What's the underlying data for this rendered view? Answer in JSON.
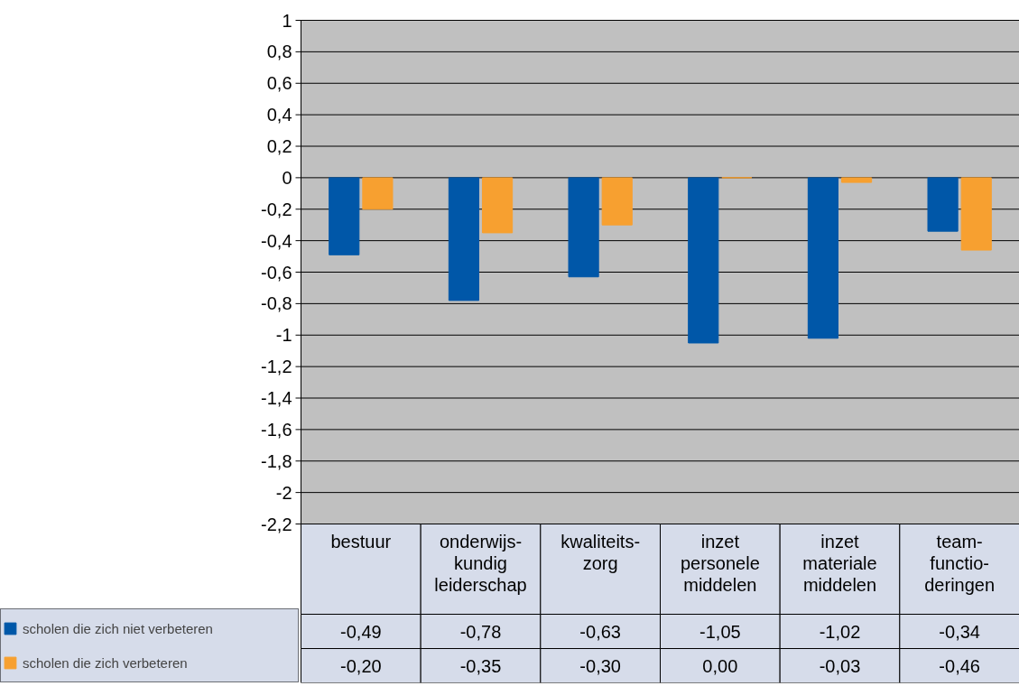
{
  "chart_data": {
    "type": "bar",
    "categories": [
      "bestuur",
      "onderwijs-\nkundig\nleiderschap",
      "kwaliteits-\nzorg",
      "inzet\npersonele\nmiddelen",
      "inzet\nmateriale\nmiddelen",
      "team-\nfunctio-\nderingen"
    ],
    "series": [
      {
        "name": "scholen die zich niet verbeteren",
        "color": "#0057a8",
        "values": [
          -0.49,
          -0.78,
          -0.63,
          -1.05,
          -1.02,
          -0.34
        ],
        "value_labels": [
          "-0,49",
          "-0,78",
          "-0,63",
          "-1,05",
          "-1,02",
          "-0,34"
        ]
      },
      {
        "name": "scholen die zich verbeteren",
        "color": "#f7a030",
        "values": [
          -0.2,
          -0.35,
          -0.3,
          0.0,
          -0.03,
          -0.46
        ],
        "value_labels": [
          "-0,20",
          "-0,35",
          "-0,30",
          "0,00",
          "-0,03",
          "-0,46"
        ]
      }
    ],
    "ylim": [
      -2.2,
      1
    ],
    "yticks": [
      1,
      {
        "value": 0.8,
        "label": "0,8"
      },
      {
        "value": 0.6,
        "label": "0,6"
      },
      {
        "value": 0.4,
        "label": "0,4"
      },
      {
        "value": 0.2,
        "label": "0,2"
      },
      0,
      {
        "value": -0.2,
        "label": "-0,2"
      },
      {
        "value": -0.4,
        "label": "-0,4"
      },
      {
        "value": -0.6,
        "label": "-0,6"
      },
      {
        "value": -0.8,
        "label": "-0,8"
      },
      -1,
      {
        "value": -1.2,
        "label": "-1,2"
      },
      {
        "value": -1.4,
        "label": "-1,4"
      },
      {
        "value": -1.6,
        "label": "-1,6"
      },
      {
        "value": -1.8,
        "label": "-1,8"
      },
      -2,
      {
        "value": -2.2,
        "label": "-2,2"
      }
    ],
    "grid": "y",
    "legend": "bottom left"
  }
}
